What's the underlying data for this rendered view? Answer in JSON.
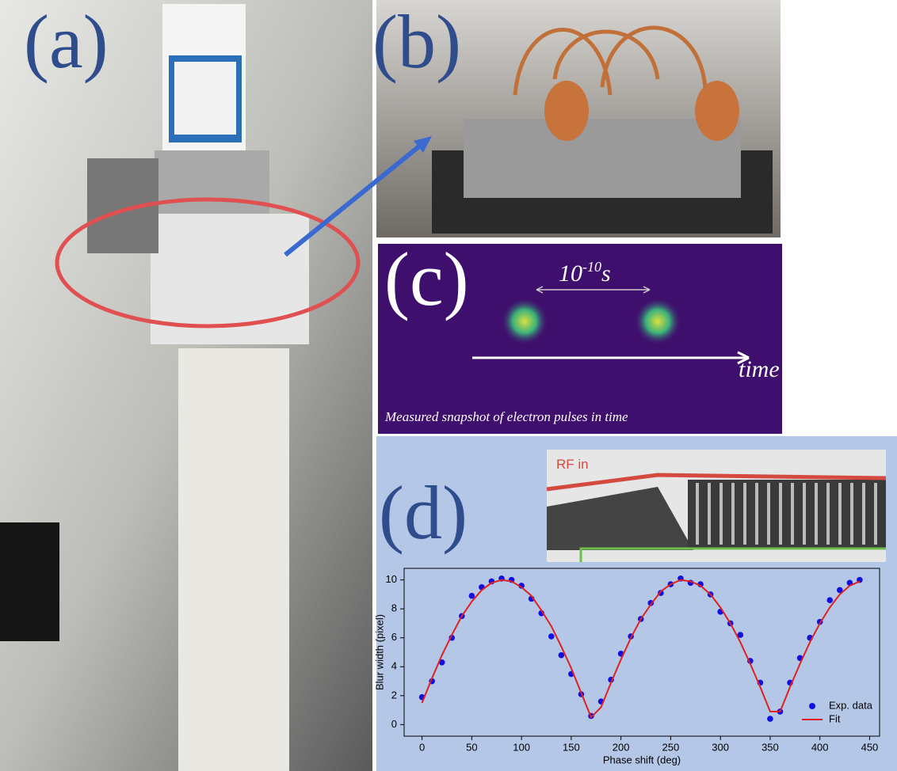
{
  "panels": {
    "a": {
      "label": "(a)"
    },
    "b": {
      "label": "(b)"
    },
    "c": {
      "label": "(c)",
      "interval_base": "10",
      "interval_exp": "-10",
      "interval_unit": "s",
      "axis_label": "time",
      "caption": "Measured snapshot of electron pulses in time"
    },
    "d": {
      "label": "(d)",
      "inset_label": "RF in"
    }
  },
  "chart_data": {
    "type": "scatter",
    "x_label": "Phase shift (deg)",
    "y_label": "Blur width (pixel)",
    "xlim": [
      -18,
      460
    ],
    "ylim": [
      -0.8,
      10.8
    ],
    "xticks": [
      0,
      50,
      100,
      150,
      200,
      250,
      300,
      350,
      400,
      450
    ],
    "yticks": [
      0,
      2,
      4,
      6,
      8,
      10
    ],
    "legend": "lower right",
    "series": [
      {
        "name": "Exp. data",
        "color": "#1010e0",
        "mode": "markers",
        "x": [
          0,
          10,
          20,
          30,
          40,
          50,
          60,
          70,
          80,
          90,
          100,
          110,
          120,
          130,
          140,
          150,
          160,
          170,
          180,
          190,
          200,
          210,
          220,
          230,
          240,
          250,
          260,
          270,
          280,
          290,
          300,
          310,
          320,
          330,
          340,
          350,
          360,
          370,
          380,
          390,
          400,
          410,
          420,
          430,
          440
        ],
        "values": [
          1.9,
          3.0,
          4.3,
          6.0,
          7.5,
          8.9,
          9.5,
          9.9,
          10.1,
          10.0,
          9.6,
          8.7,
          7.7,
          6.1,
          4.8,
          3.5,
          2.1,
          0.6,
          1.6,
          3.1,
          4.9,
          6.1,
          7.3,
          8.4,
          9.1,
          9.7,
          10.1,
          9.8,
          9.7,
          9.0,
          7.8,
          7.0,
          6.2,
          4.4,
          2.9,
          0.4,
          0.9,
          2.9,
          4.6,
          6.0,
          7.1,
          8.6,
          9.3,
          9.8,
          10.0
        ]
      },
      {
        "name": "Fit",
        "color": "#e02020",
        "mode": "line",
        "x": [
          0,
          10,
          20,
          30,
          40,
          50,
          60,
          70,
          80,
          90,
          100,
          110,
          120,
          130,
          140,
          150,
          160,
          170,
          180,
          190,
          200,
          210,
          220,
          230,
          240,
          250,
          260,
          270,
          280,
          290,
          300,
          310,
          320,
          330,
          340,
          350,
          360,
          370,
          380,
          390,
          400,
          410,
          420,
          430,
          440
        ],
        "values": [
          1.5,
          3.2,
          4.8,
          6.2,
          7.5,
          8.5,
          9.3,
          9.8,
          10.0,
          9.9,
          9.5,
          8.9,
          7.9,
          6.8,
          5.4,
          3.9,
          2.2,
          0.5,
          1.2,
          2.9,
          4.5,
          6.0,
          7.3,
          8.3,
          9.2,
          9.7,
          10.0,
          9.9,
          9.6,
          9.0,
          8.1,
          7.0,
          5.7,
          4.2,
          2.6,
          0.9,
          0.9,
          2.6,
          4.2,
          5.7,
          7.0,
          8.1,
          9.0,
          9.6,
          9.9
        ]
      }
    ]
  }
}
